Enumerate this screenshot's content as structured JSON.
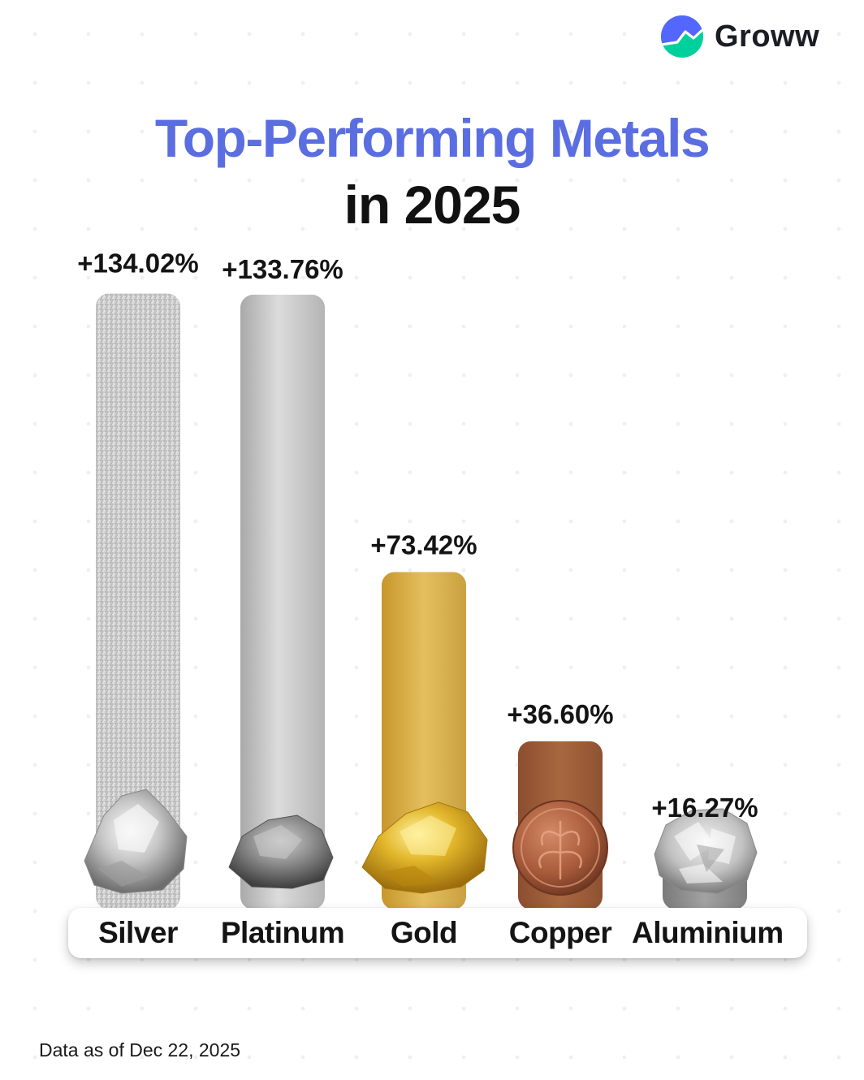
{
  "brand": {
    "name": "Groww",
    "icon": "groww-logo-icon",
    "colors": [
      "#5367ff",
      "#00d09c"
    ]
  },
  "title": {
    "line1": "Top-Performing Metals",
    "line2": "in 2025"
  },
  "chart_data": {
    "type": "bar",
    "title": "Top-Performing Metals in 2025",
    "xlabel": "",
    "ylabel": "",
    "grid": false,
    "categories": [
      "Silver",
      "Platinum",
      "Gold",
      "Copper",
      "Aluminium"
    ],
    "values": [
      134.02,
      133.76,
      73.42,
      36.6,
      16.27
    ],
    "value_labels": [
      "+134.02%",
      "+133.76%",
      "+73.42%",
      "+36.60%",
      "+16.27%"
    ],
    "colors": [
      "#c9c9c9",
      "#bcbcbc",
      "#d4a83a",
      "#9a5a38",
      "#8c8c8c"
    ],
    "unit": "%"
  },
  "footnote": "Data as of Dec 22, 2025"
}
